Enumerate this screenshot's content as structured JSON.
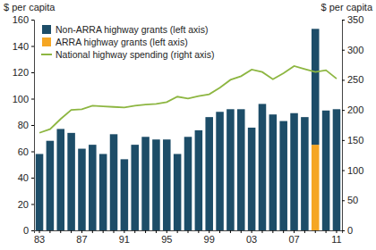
{
  "chart_data": {
    "type": "bar",
    "ylabel": "$ per capita",
    "y2label": "$ per capita",
    "categories": [
      "83",
      null,
      null,
      null,
      "87",
      null,
      null,
      null,
      "91",
      null,
      null,
      null,
      "95",
      null,
      null,
      null,
      "99",
      null,
      null,
      null,
      "03",
      null,
      null,
      null,
      "07",
      null,
      null,
      null,
      "11"
    ],
    "stacked": true,
    "legend": "upper left",
    "ylim": [
      0,
      160
    ],
    "yticks": [
      0,
      20,
      40,
      60,
      80,
      100,
      120,
      140,
      160
    ],
    "y2lim": [
      0,
      350
    ],
    "y2ticks": [
      0,
      50,
      100,
      150,
      200,
      250,
      300,
      350
    ],
    "series": [
      {
        "name": "Non-ARRA highway grants (left axis)",
        "type": "bar",
        "color": "#1d4d68",
        "values": [
          58,
          68,
          77,
          74,
          62,
          65,
          58,
          73,
          54,
          65,
          71,
          69,
          69,
          58,
          71,
          76,
          86,
          90,
          92,
          92,
          78,
          96,
          88,
          83,
          89,
          86,
          88,
          91,
          92
        ]
      },
      {
        "name": "ARRA highway grants (left axis)",
        "type": "bar",
        "color": "#f5a623",
        "values": [
          null,
          null,
          null,
          null,
          null,
          null,
          null,
          null,
          null,
          null,
          null,
          null,
          null,
          null,
          null,
          null,
          null,
          null,
          null,
          null,
          null,
          null,
          null,
          null,
          null,
          null,
          65,
          null,
          null
        ]
      },
      {
        "name": "National highway spending (right axis)",
        "type": "line",
        "axis": "y2",
        "color": "#8db641",
        "values": [
          162,
          168,
          185,
          200,
          201,
          207,
          206,
          205,
          204,
          207,
          209,
          210,
          213,
          222,
          219,
          223,
          226,
          237,
          250,
          256,
          267,
          263,
          251,
          261,
          273,
          268,
          263,
          266,
          252
        ]
      }
    ]
  }
}
